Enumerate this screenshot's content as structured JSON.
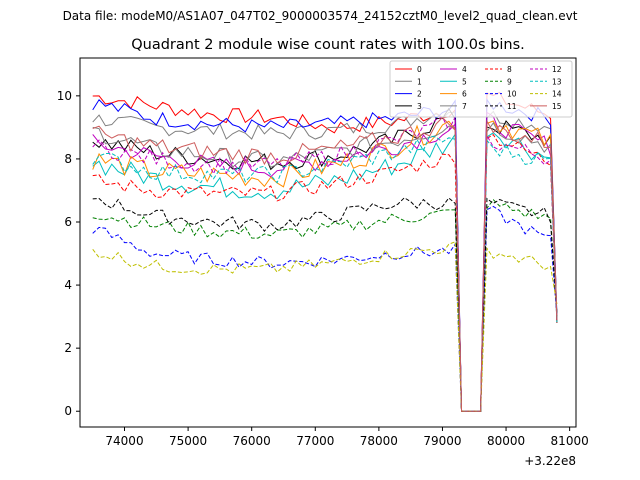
{
  "figure": {
    "suptitle": "Data file: modeM0/AS1A07_047T02_9000003574_24152cztM0_level2_quad_clean.evt"
  },
  "chart_data": {
    "type": "line",
    "title": "Quadrant 2 module wise count rates with 100.0s bins.",
    "xlabel": "",
    "ylabel": "",
    "x_offset_label": "+3.22e8",
    "xlim": [
      73300,
      81100
    ],
    "ylim": [
      -0.5,
      11.2
    ],
    "x_ticks": [
      74000,
      75000,
      76000,
      77000,
      78000,
      79000,
      80000,
      81000
    ],
    "y_ticks": [
      0,
      2,
      4,
      6,
      8,
      10
    ],
    "grid": false,
    "legend_placement": "top-right",
    "legend_columns": 4,
    "x": {
      "start": 73500,
      "step": 100,
      "end": 80800
    },
    "gap": {
      "x_from": 79300,
      "x_to": 79600,
      "value": 0
    },
    "noise_seed": 7,
    "series": [
      {
        "name": "0",
        "color": "#ff0000",
        "dash": "solid",
        "pre": [
          10.0,
          9.7,
          9.4,
          9.3,
          9.0,
          9.2,
          9.6
        ],
        "post": [
          10.0,
          9.4,
          2.9
        ],
        "noise": 0.25
      },
      {
        "name": "1",
        "color": "#808080",
        "dash": "solid",
        "pre": [
          9.3,
          9.0,
          8.9,
          8.8,
          8.9,
          9.1,
          9.6
        ],
        "post": [
          9.4,
          9.0,
          3.0
        ],
        "noise": 0.25
      },
      {
        "name": "2",
        "color": "#0000ff",
        "dash": "solid",
        "pre": [
          9.8,
          9.3,
          9.1,
          9.0,
          9.1,
          9.3,
          9.6
        ],
        "post": [
          9.8,
          9.3,
          3.0
        ],
        "noise": 0.25
      },
      {
        "name": "3",
        "color": "#000000",
        "dash": "solid",
        "pre": [
          8.6,
          8.2,
          8.0,
          7.9,
          8.1,
          8.6,
          9.4
        ],
        "post": [
          9.1,
          8.6,
          2.8
        ],
        "noise": 0.3
      },
      {
        "name": "4",
        "color": "#bf00bf",
        "dash": "solid",
        "pre": [
          8.5,
          8.1,
          7.8,
          7.7,
          8.0,
          8.4,
          9.0
        ],
        "post": [
          9.2,
          8.4,
          2.9
        ],
        "noise": 0.3
      },
      {
        "name": "5",
        "color": "#00bfbf",
        "dash": "solid",
        "pre": [
          7.9,
          7.4,
          7.1,
          7.0,
          7.3,
          7.8,
          8.6
        ],
        "post": [
          9.0,
          8.0,
          2.8
        ],
        "noise": 0.35
      },
      {
        "name": "6",
        "color": "#ff8c00",
        "dash": "solid",
        "pre": [
          8.0,
          7.6,
          7.5,
          7.4,
          7.8,
          8.4,
          9.2
        ],
        "post": [
          9.3,
          8.5,
          2.9
        ],
        "noise": 0.35
      },
      {
        "name": "7",
        "color": "#808080",
        "dash": "solid",
        "pre": [
          8.9,
          8.3,
          8.1,
          7.9,
          8.2,
          8.6,
          9.1
        ],
        "post": [
          9.1,
          8.4,
          2.9
        ],
        "noise": 0.3
      },
      {
        "name": "8",
        "color": "#ff0000",
        "dash": "dashed",
        "pre": [
          7.3,
          7.0,
          6.9,
          6.9,
          7.2,
          7.6,
          8.1
        ],
        "post": [
          8.8,
          7.9,
          2.8
        ],
        "noise": 0.25
      },
      {
        "name": "9",
        "color": "#008000",
        "dash": "dashed",
        "pre": [
          6.3,
          5.9,
          5.7,
          5.6,
          5.8,
          6.1,
          6.3
        ],
        "post": [
          6.6,
          6.1,
          3.0
        ],
        "noise": 0.22
      },
      {
        "name": "10",
        "color": "#0000ff",
        "dash": "dashed",
        "pre": [
          5.8,
          5.0,
          4.8,
          4.7,
          4.8,
          5.0,
          5.1
        ],
        "post": [
          6.4,
          5.4,
          3.0
        ],
        "noise": 0.2
      },
      {
        "name": "11",
        "color": "#000000",
        "dash": "dashed",
        "pre": [
          6.8,
          6.2,
          6.0,
          5.9,
          6.2,
          6.6,
          6.6
        ],
        "post": [
          6.6,
          6.2,
          3.1
        ],
        "noise": 0.22
      },
      {
        "name": "12",
        "color": "#bf00bf",
        "dash": "dashed",
        "pre": [
          8.4,
          8.0,
          7.8,
          7.8,
          8.1,
          8.6,
          9.2
        ],
        "post": [
          8.6,
          8.0,
          2.9
        ],
        "noise": 0.28
      },
      {
        "name": "13",
        "color": "#00bfbf",
        "dash": "dashed",
        "pre": [
          8.1,
          7.6,
          7.5,
          7.5,
          7.8,
          8.2,
          8.7
        ],
        "post": [
          8.4,
          7.9,
          2.9
        ],
        "noise": 0.28
      },
      {
        "name": "14",
        "color": "#bfbf00",
        "dash": "dashed",
        "pre": [
          5.1,
          4.6,
          4.5,
          4.5,
          4.7,
          5.0,
          5.2
        ],
        "post": [
          5.1,
          4.6,
          3.4
        ],
        "noise": 0.2
      },
      {
        "name": "15",
        "color": "#cd5c5c",
        "dash": "solid",
        "pre": [
          8.8,
          8.4,
          8.2,
          8.1,
          8.3,
          8.7,
          9.2
        ],
        "post": [
          9.0,
          8.5,
          2.9
        ],
        "noise": 0.3
      }
    ]
  }
}
